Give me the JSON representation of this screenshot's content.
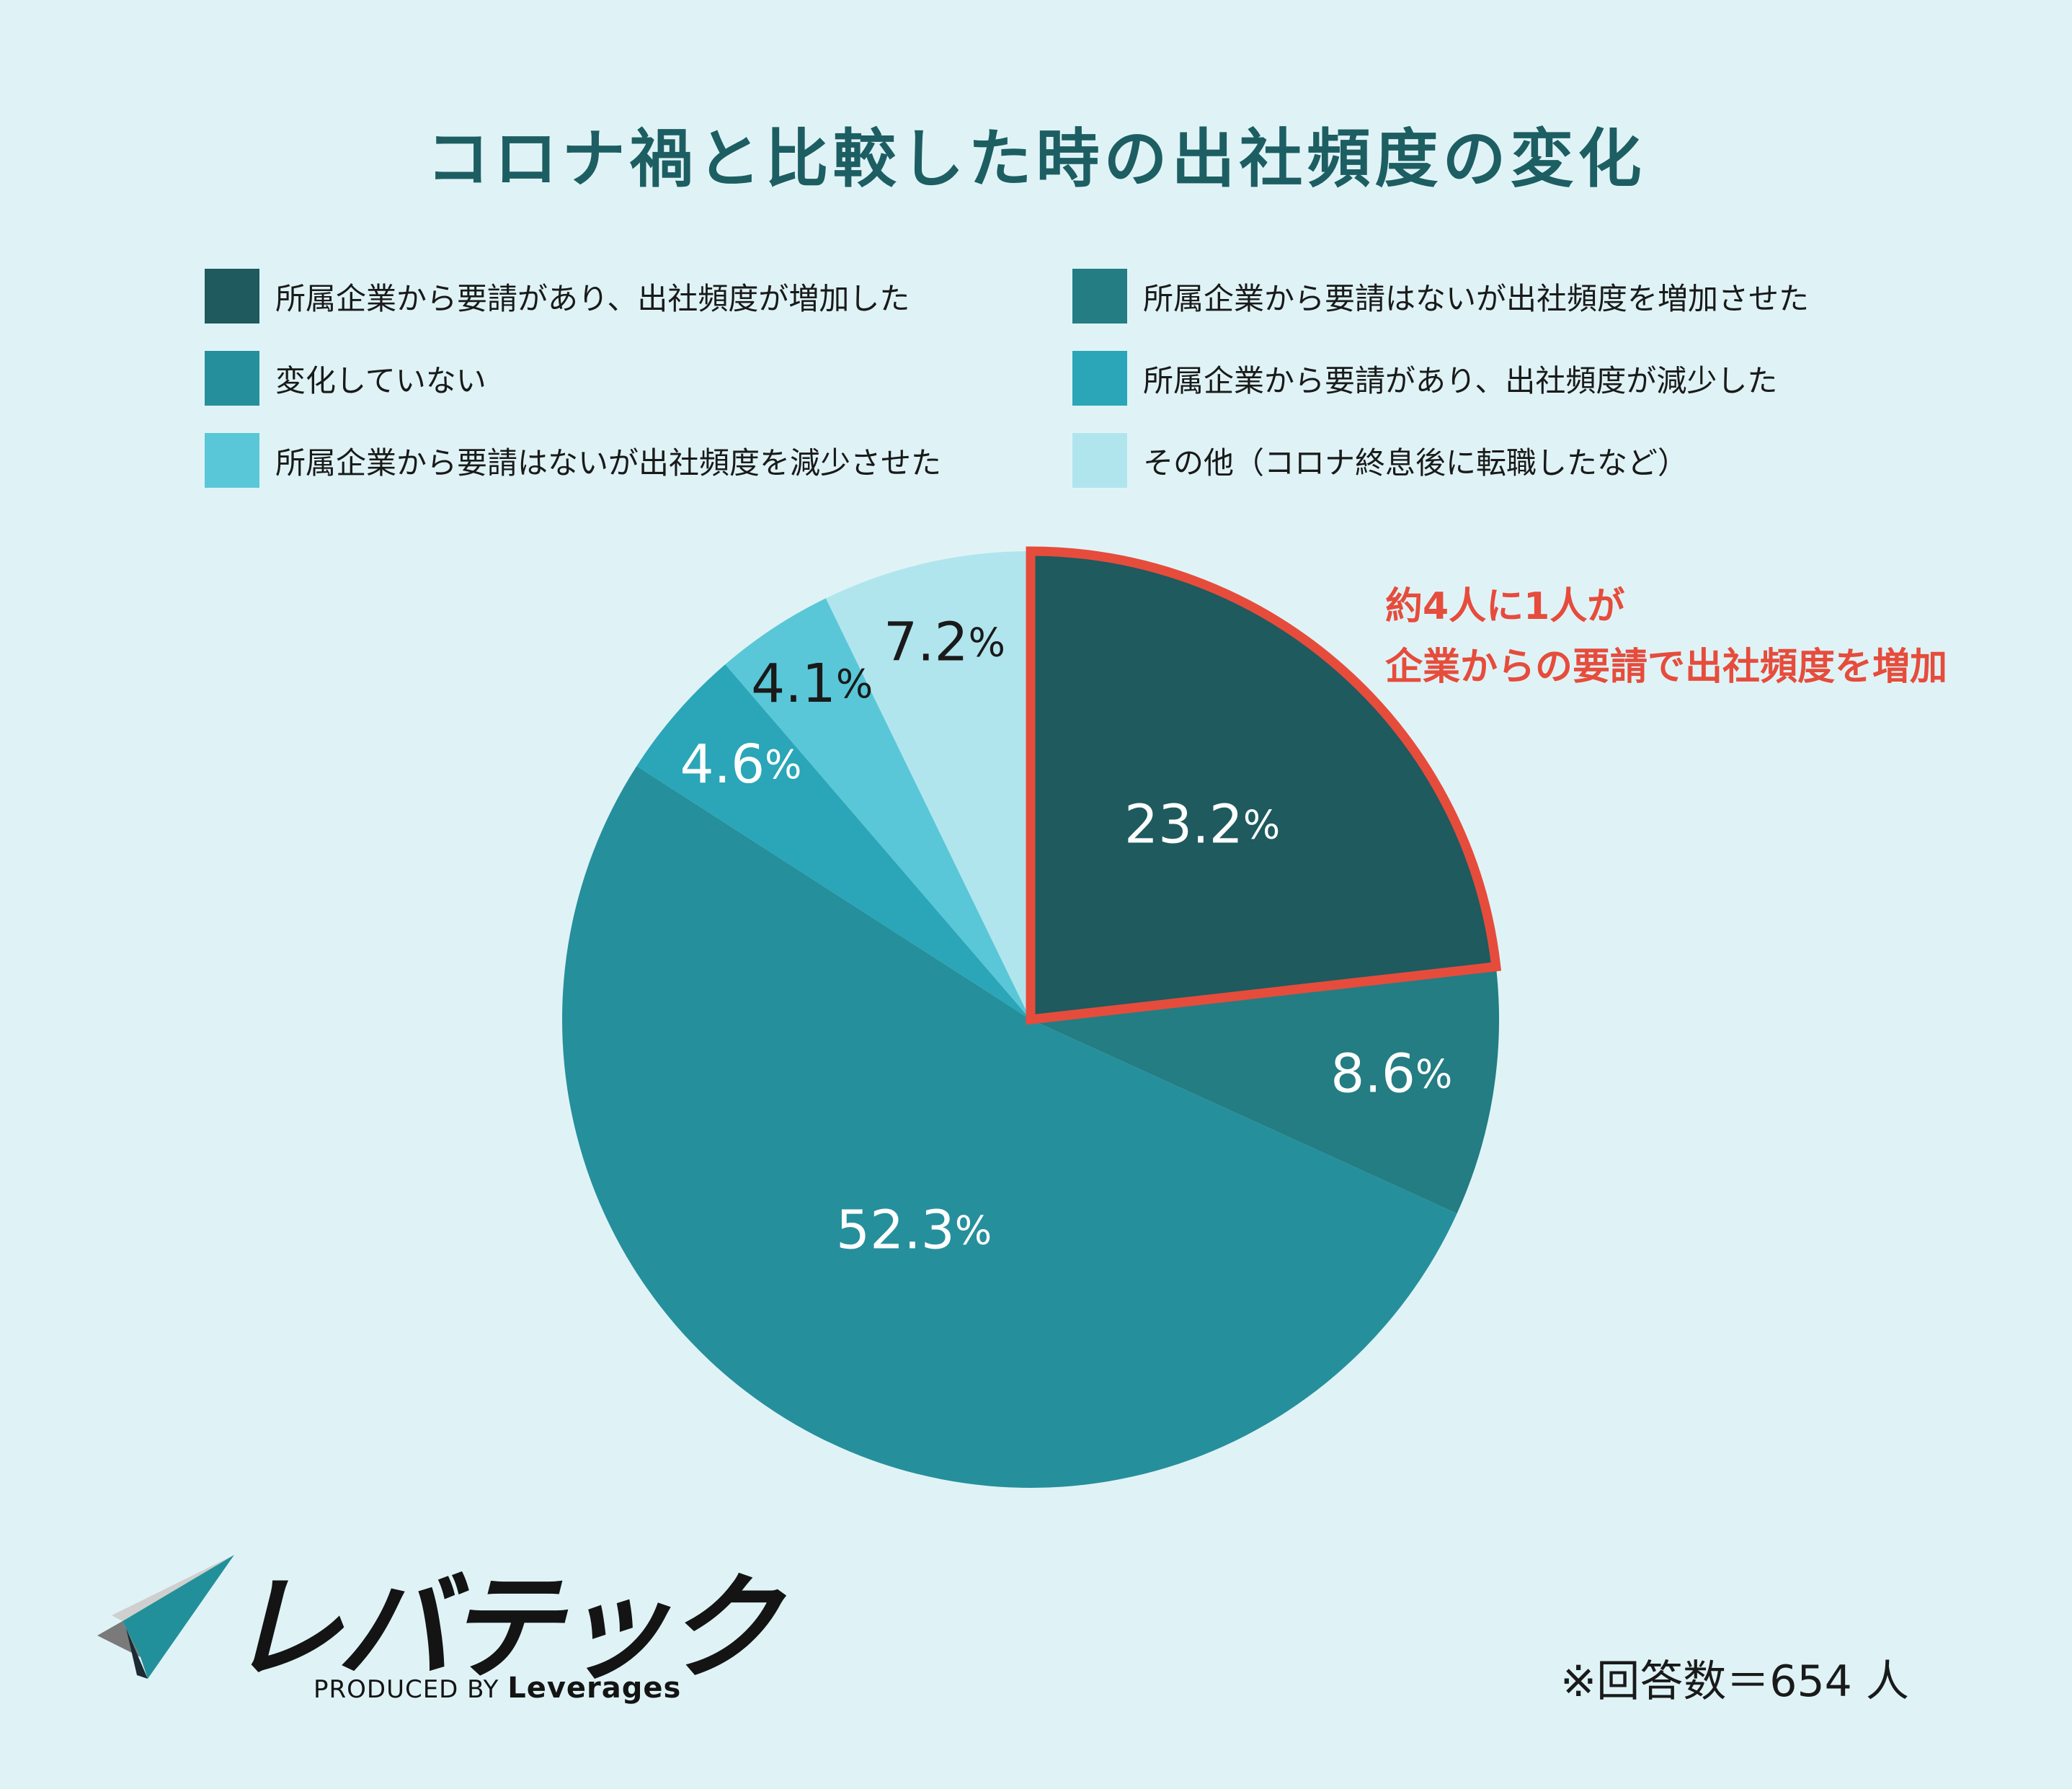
{
  "chart_data": {
    "type": "pie",
    "title": "コロナ禍と比較した時の出社頻度の変化",
    "start_angle_deg": 0,
    "direction": "clockwise",
    "unit": "%",
    "slices": [
      {
        "label": "所属企業から要請があり、出社頻度が増加した",
        "value": 23.2,
        "value_text": "23.2",
        "color": "#1e5a5e",
        "label_color": "#ffffff",
        "highlight": true
      },
      {
        "label": "所属企業から要請はないが出社頻度を増加させた",
        "value": 8.6,
        "value_text": "8.6",
        "color": "#237d83",
        "label_color": "#ffffff",
        "highlight": false
      },
      {
        "label": "変化していない",
        "value": 52.3,
        "value_text": "52.3",
        "color": "#268f9c",
        "label_color": "#ffffff",
        "highlight": false
      },
      {
        "label": "所属企業から要請があり、出社頻度が減少した",
        "value": 4.6,
        "value_text": "4.6",
        "color": "#2aa6b8",
        "label_color": "#ffffff",
        "highlight": false
      },
      {
        "label": "所属企業から要請はないが出社頻度を減少させた",
        "value": 4.1,
        "value_text": "4.1",
        "color": "#59c7d7",
        "label_color": "#1a1a1a",
        "highlight": false
      },
      {
        "label": "その他（コロナ終息後に転職したなど）",
        "value": 7.2,
        "value_text": "7.2",
        "color": "#b1e5ee",
        "label_color": "#1a1a1a",
        "highlight": false
      }
    ],
    "legend_position": "top",
    "legend_columns": 2
  },
  "callout": {
    "line1": "約4人に1人が",
    "line2": "企業からの要請で出社頻度を増加",
    "color": "#e64c3c"
  },
  "logo": {
    "name": "レバテック",
    "produced_by": "PRODUCED BY",
    "brand": "Leverages"
  },
  "note": "※回答数＝654 人",
  "colors": {
    "background": "#dff3f6",
    "title": "#1d5e62",
    "highlight_stroke": "#e64c3c"
  }
}
